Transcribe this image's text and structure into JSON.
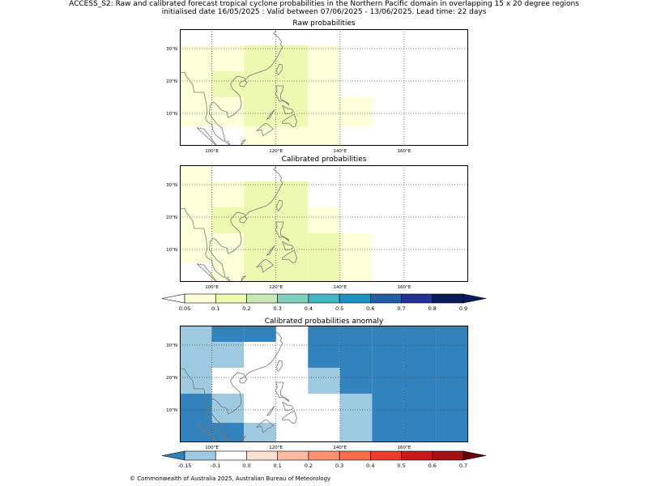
{
  "header": {
    "title": "ACCESS_S2: Raw and calibrated forecast tropical cyclone probabilities in the Northern Pacific domain in overlapping 15 x 20 degree regions",
    "subtitle": "initialised date 16/05/2025 :  Valid between 07/06/2025 - 13/06/2025. Lead time: 22 days"
  },
  "footer": "© Commonwealth of Australia 2025, Australian Bureau of Meteorology",
  "chart_data": [
    {
      "type": "heatmap",
      "title": "Raw probabilities",
      "xlim": [
        90,
        180
      ],
      "ylim": [
        0,
        36
      ],
      "x_ticks": [
        100,
        120,
        140,
        160
      ],
      "x_tick_labels": [
        "100°E",
        "120°E",
        "140°E",
        "160°E"
      ],
      "y_ticks": [
        10,
        20,
        30
      ],
      "y_tick_labels": [
        "10°N",
        "20°N",
        "30°N"
      ],
      "grid": true,
      "cells": [
        {
          "lon": [
            90,
            100
          ],
          "lat": [
            23,
            31
          ],
          "value": 0.07
        },
        {
          "lon": [
            100,
            110
          ],
          "lat": [
            23,
            31
          ],
          "value": 0.07
        },
        {
          "lon": [
            110,
            120
          ],
          "lat": [
            23,
            31
          ],
          "value": 0.14
        },
        {
          "lon": [
            120,
            130
          ],
          "lat": [
            23,
            31
          ],
          "value": 0.14
        },
        {
          "lon": [
            130,
            140
          ],
          "lat": [
            23,
            31
          ],
          "value": 0.07
        },
        {
          "lon": [
            90,
            100
          ],
          "lat": [
            15,
            23
          ],
          "value": 0.07
        },
        {
          "lon": [
            100,
            110
          ],
          "lat": [
            15,
            23
          ],
          "value": 0.14
        },
        {
          "lon": [
            110,
            120
          ],
          "lat": [
            15,
            23
          ],
          "value": 0.14
        },
        {
          "lon": [
            120,
            130
          ],
          "lat": [
            15,
            23
          ],
          "value": 0.14
        },
        {
          "lon": [
            130,
            140
          ],
          "lat": [
            15,
            23
          ],
          "value": 0.07
        },
        {
          "lon": [
            90,
            100
          ],
          "lat": [
            6,
            15
          ],
          "value": 0.07
        },
        {
          "lon": [
            100,
            110
          ],
          "lat": [
            6,
            15
          ],
          "value": 0.07
        },
        {
          "lon": [
            110,
            120
          ],
          "lat": [
            6,
            15
          ],
          "value": 0.14
        },
        {
          "lon": [
            120,
            130
          ],
          "lat": [
            6,
            15
          ],
          "value": 0.14
        },
        {
          "lon": [
            130,
            140
          ],
          "lat": [
            6,
            15
          ],
          "value": 0.07
        },
        {
          "lon": [
            140,
            150
          ],
          "lat": [
            6,
            15
          ],
          "value": 0.07
        },
        {
          "lon": [
            110,
            120
          ],
          "lat": [
            0,
            6
          ],
          "value": 0.07
        },
        {
          "lon": [
            120,
            130
          ],
          "lat": [
            0,
            6
          ],
          "value": 0.07
        },
        {
          "lon": [
            130,
            140
          ],
          "lat": [
            0,
            6
          ],
          "value": 0.07
        }
      ]
    },
    {
      "type": "heatmap",
      "title": "Calibrated probabilities",
      "xlim": [
        90,
        180
      ],
      "ylim": [
        0,
        36
      ],
      "x_ticks": [
        100,
        120,
        140,
        160
      ],
      "x_tick_labels": [
        "100°E",
        "120°E",
        "140°E",
        "160°E"
      ],
      "y_ticks": [
        10,
        20,
        30
      ],
      "y_tick_labels": [
        "10°N",
        "20°N",
        "30°N"
      ],
      "grid": true,
      "cells": [
        {
          "lon": [
            90,
            100
          ],
          "lat": [
            31,
            36
          ],
          "value": 0.07
        },
        {
          "lon": [
            90,
            100
          ],
          "lat": [
            23,
            31
          ],
          "value": 0.07
        },
        {
          "lon": [
            100,
            110
          ],
          "lat": [
            23,
            31
          ],
          "value": 0.07
        },
        {
          "lon": [
            110,
            120
          ],
          "lat": [
            23,
            31
          ],
          "value": 0.14
        },
        {
          "lon": [
            120,
            130
          ],
          "lat": [
            23,
            31
          ],
          "value": 0.14
        },
        {
          "lon": [
            90,
            100
          ],
          "lat": [
            15,
            23
          ],
          "value": 0.07
        },
        {
          "lon": [
            100,
            110
          ],
          "lat": [
            15,
            23
          ],
          "value": 0.14
        },
        {
          "lon": [
            110,
            120
          ],
          "lat": [
            15,
            23
          ],
          "value": 0.14
        },
        {
          "lon": [
            120,
            130
          ],
          "lat": [
            15,
            23
          ],
          "value": 0.14
        },
        {
          "lon": [
            130,
            140
          ],
          "lat": [
            15,
            23
          ],
          "value": 0.07
        },
        {
          "lon": [
            90,
            100
          ],
          "lat": [
            6,
            15
          ],
          "value": 0.07
        },
        {
          "lon": [
            100,
            110
          ],
          "lat": [
            6,
            15
          ],
          "value": 0.07
        },
        {
          "lon": [
            110,
            120
          ],
          "lat": [
            6,
            15
          ],
          "value": 0.14
        },
        {
          "lon": [
            120,
            130
          ],
          "lat": [
            6,
            15
          ],
          "value": 0.14
        },
        {
          "lon": [
            130,
            140
          ],
          "lat": [
            6,
            15
          ],
          "value": 0.14
        },
        {
          "lon": [
            140,
            150
          ],
          "lat": [
            6,
            15
          ],
          "value": 0.07
        },
        {
          "lon": [
            100,
            110
          ],
          "lat": [
            0,
            6
          ],
          "value": 0.07
        },
        {
          "lon": [
            110,
            120
          ],
          "lat": [
            0,
            6
          ],
          "value": 0.14
        },
        {
          "lon": [
            120,
            130
          ],
          "lat": [
            0,
            6
          ],
          "value": 0.14
        },
        {
          "lon": [
            130,
            140
          ],
          "lat": [
            0,
            6
          ],
          "value": 0.14
        },
        {
          "lon": [
            140,
            150
          ],
          "lat": [
            0,
            6
          ],
          "value": 0.07
        }
      ],
      "colorbar": {
        "levels": [
          "0.05",
          "0.1",
          "0.2",
          "0.3",
          "0.4",
          "0.5",
          "0.6",
          "0.7",
          "0.8",
          "0.9"
        ],
        "colors": [
          "#ffffd9",
          "#edf8b1",
          "#c7e9b4",
          "#7fcdbb",
          "#41b6c4",
          "#1d91c0",
          "#225ea8",
          "#253494",
          "#081d58"
        ],
        "under_color": "#ffffff",
        "over_color": "#081d58"
      }
    },
    {
      "type": "heatmap",
      "title": "Calibrated probabilities anomaly",
      "xlim": [
        90,
        180
      ],
      "ylim": [
        0,
        36
      ],
      "x_ticks": [
        100,
        120,
        140,
        160
      ],
      "x_tick_labels": [
        "100°E",
        "120°E",
        "140°E",
        "160°E"
      ],
      "y_ticks": [
        10,
        20,
        30
      ],
      "y_tick_labels": [
        "10°N",
        "20°N",
        "30°N"
      ],
      "grid": true,
      "cells": [
        {
          "lon": [
            90,
            100
          ],
          "lat": [
            31,
            36
          ],
          "value": -0.12
        },
        {
          "lon": [
            100,
            110
          ],
          "lat": [
            31,
            36
          ],
          "value": -0.17
        },
        {
          "lon": [
            110,
            120
          ],
          "lat": [
            31,
            36
          ],
          "value": -0.17
        },
        {
          "lon": [
            130,
            140
          ],
          "lat": [
            31,
            36
          ],
          "value": -0.17
        },
        {
          "lon": [
            140,
            150
          ],
          "lat": [
            31,
            36
          ],
          "value": -0.17
        },
        {
          "lon": [
            150,
            160
          ],
          "lat": [
            31,
            36
          ],
          "value": -0.17
        },
        {
          "lon": [
            160,
            170
          ],
          "lat": [
            31,
            36
          ],
          "value": -0.17
        },
        {
          "lon": [
            170,
            180
          ],
          "lat": [
            31,
            36
          ],
          "value": -0.17
        },
        {
          "lon": [
            90,
            100
          ],
          "lat": [
            23,
            31
          ],
          "value": -0.12
        },
        {
          "lon": [
            100,
            110
          ],
          "lat": [
            23,
            31
          ],
          "value": -0.12
        },
        {
          "lon": [
            130,
            140
          ],
          "lat": [
            23,
            31
          ],
          "value": -0.17
        },
        {
          "lon": [
            140,
            150
          ],
          "lat": [
            23,
            31
          ],
          "value": -0.17
        },
        {
          "lon": [
            150,
            160
          ],
          "lat": [
            23,
            31
          ],
          "value": -0.17
        },
        {
          "lon": [
            160,
            170
          ],
          "lat": [
            23,
            31
          ],
          "value": -0.17
        },
        {
          "lon": [
            170,
            180
          ],
          "lat": [
            23,
            31
          ],
          "value": -0.17
        },
        {
          "lon": [
            90,
            100
          ],
          "lat": [
            15,
            23
          ],
          "value": -0.12
        },
        {
          "lon": [
            130,
            140
          ],
          "lat": [
            15,
            23
          ],
          "value": -0.12
        },
        {
          "lon": [
            140,
            150
          ],
          "lat": [
            15,
            23
          ],
          "value": -0.17
        },
        {
          "lon": [
            150,
            160
          ],
          "lat": [
            15,
            23
          ],
          "value": -0.17
        },
        {
          "lon": [
            160,
            170
          ],
          "lat": [
            15,
            23
          ],
          "value": -0.17
        },
        {
          "lon": [
            170,
            180
          ],
          "lat": [
            15,
            23
          ],
          "value": -0.17
        },
        {
          "lon": [
            90,
            100
          ],
          "lat": [
            6,
            15
          ],
          "value": -0.17
        },
        {
          "lon": [
            100,
            110
          ],
          "lat": [
            6,
            15
          ],
          "value": -0.12
        },
        {
          "lon": [
            140,
            150
          ],
          "lat": [
            6,
            15
          ],
          "value": -0.12
        },
        {
          "lon": [
            150,
            160
          ],
          "lat": [
            6,
            15
          ],
          "value": -0.17
        },
        {
          "lon": [
            160,
            170
          ],
          "lat": [
            6,
            15
          ],
          "value": -0.17
        },
        {
          "lon": [
            170,
            180
          ],
          "lat": [
            6,
            15
          ],
          "value": -0.17
        },
        {
          "lon": [
            90,
            100
          ],
          "lat": [
            0,
            6
          ],
          "value": -0.17
        },
        {
          "lon": [
            100,
            110
          ],
          "lat": [
            0,
            6
          ],
          "value": -0.17
        },
        {
          "lon": [
            110,
            120
          ],
          "lat": [
            0,
            6
          ],
          "value": -0.12
        },
        {
          "lon": [
            140,
            150
          ],
          "lat": [
            0,
            6
          ],
          "value": -0.12
        },
        {
          "lon": [
            150,
            160
          ],
          "lat": [
            0,
            6
          ],
          "value": -0.17
        },
        {
          "lon": [
            160,
            170
          ],
          "lat": [
            0,
            6
          ],
          "value": -0.17
        },
        {
          "lon": [
            170,
            180
          ],
          "lat": [
            0,
            6
          ],
          "value": -0.17
        }
      ],
      "colorbar": {
        "levels": [
          "-0.15",
          "-0.1",
          "0.0",
          "0.1",
          "0.2",
          "0.3",
          "0.4",
          "0.5",
          "0.6",
          "0.7"
        ],
        "colors": [
          "#9ecae1",
          "#ffffff",
          "#fee0d2",
          "#fcbba1",
          "#fc9272",
          "#fb6a4a",
          "#ef3b2c",
          "#cb181d",
          "#a50f15"
        ],
        "under_color": "#3182bd",
        "over_color": "#67000d"
      }
    }
  ]
}
